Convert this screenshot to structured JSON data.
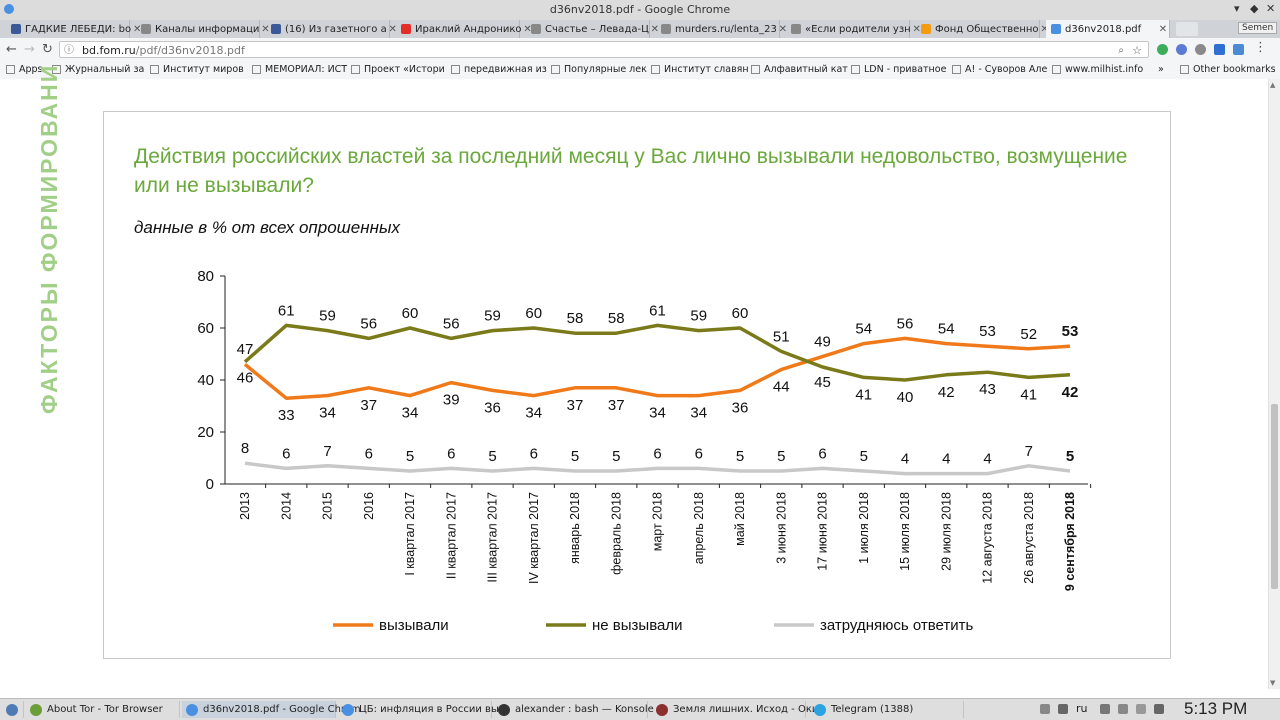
{
  "window": {
    "title": "d36nv2018.pdf - Google Chrome",
    "controls": [
      "▾",
      "◆",
      "✕"
    ]
  },
  "tabs": [
    {
      "label": "ГАДКИЕ ЛЕБЕДИ: bo",
      "color": "#3b5998"
    },
    {
      "label": "Каналы информаци",
      "color": "#888888"
    },
    {
      "label": "(16) Из газетного а",
      "color": "#3b5998"
    },
    {
      "label": "Ираклий Андронико",
      "color": "#e52d27"
    },
    {
      "label": "Счастье – Левада-Ц",
      "color": "#888888"
    },
    {
      "label": "murders.ru/lenta_23",
      "color": "#888888"
    },
    {
      "label": "«Если родители узн",
      "color": "#888888"
    },
    {
      "label": "Фонд Общественно",
      "color": "#f39c12"
    },
    {
      "label": "d36nv2018.pdf",
      "color": "#4a90e2"
    }
  ],
  "profile_label": "Semen",
  "omnibox": {
    "host": "bd.fom.ru",
    "path": "/pdf/d36nv2018.pdf"
  },
  "bookmarks": [
    {
      "label": "Apps"
    },
    {
      "label": "Журнальный за"
    },
    {
      "label": "Институт миров"
    },
    {
      "label": "МЕМОРИАЛ: ИСТ"
    },
    {
      "label": "Проект «Истори"
    },
    {
      "label": "передвижная из"
    },
    {
      "label": "Популярные лек"
    },
    {
      "label": "Институт славян"
    },
    {
      "label": "Алфавитный кат"
    },
    {
      "label": "LDN - приватное"
    },
    {
      "label": "А! - Суворов Але"
    },
    {
      "label": "www.milhist.info"
    },
    {
      "label": "»"
    },
    {
      "label": "Other bookmarks"
    }
  ],
  "side_text": "ФАКТОРЫ ФОРМИРОВАНИ",
  "chart_title": "Действия российских властей за последний месяц у Вас лично вызывали недовольство, возмущение или не вызывали?",
  "chart_subtitle": "данные в % от всех опрошенных",
  "chart_data": {
    "type": "line",
    "title": "Действия российских властей за последний месяц у Вас лично вызывали недовольство, возмущение или не вызывали?",
    "subtitle": "данные в % от всех опрошенных",
    "categories": [
      "2013",
      "2014",
      "2015",
      "2016",
      "I квартал 2017",
      "II квартал 2017",
      "III квартал 2017",
      "IV квартал 2017",
      "январь 2018",
      "февраль 2018",
      "март 2018",
      "апрель 2018",
      "май 2018",
      "3 июня 2018",
      "17 июня 2018",
      "1 июля 2018",
      "15 июля 2018",
      "29 июля 2018",
      "12 августа 2018",
      "26 августа 2018",
      "9 сентября 2018"
    ],
    "y_ticks": [
      "80",
      "60",
      "40",
      "20",
      "0"
    ],
    "ylim": [
      0,
      80
    ],
    "legend_position": "bottom",
    "grid": false,
    "series": [
      {
        "name": "вызывали",
        "color": "#f07a1a",
        "values": [
          46,
          33,
          34,
          37,
          34,
          39,
          36,
          34,
          37,
          37,
          34,
          34,
          36,
          44,
          49,
          54,
          56,
          54,
          53,
          52,
          53
        ]
      },
      {
        "name": "не вызывали",
        "color": "#7a7a1a",
        "values": [
          47,
          61,
          59,
          56,
          60,
          56,
          59,
          60,
          58,
          58,
          61,
          59,
          60,
          51,
          45,
          41,
          40,
          42,
          43,
          41,
          42
        ]
      },
      {
        "name": "затрудняюсь ответить",
        "color": "#c8c8c8",
        "values": [
          8,
          6,
          7,
          6,
          5,
          6,
          5,
          6,
          5,
          5,
          6,
          6,
          5,
          5,
          6,
          5,
          4,
          4,
          4,
          7,
          5
        ]
      }
    ]
  },
  "taskbar": [
    {
      "label": "About Tor - Tor Browser",
      "color": "#6a9e3a"
    },
    {
      "label": "d36nv2018.pdf - Google Chrom",
      "color": "#4a90e2"
    },
    {
      "label": "ЦБ: инфляция в России выр",
      "color": "#4a90e2"
    },
    {
      "label": "alexander : bash — Konsole",
      "color": "#333333"
    },
    {
      "label": "Земля лишних. Исход - Оки",
      "color": "#8b2f2f"
    },
    {
      "label": "Telegram (1388)",
      "color": "#2aa3e0"
    }
  ],
  "lang": "ru",
  "clock": "5:13 PM"
}
